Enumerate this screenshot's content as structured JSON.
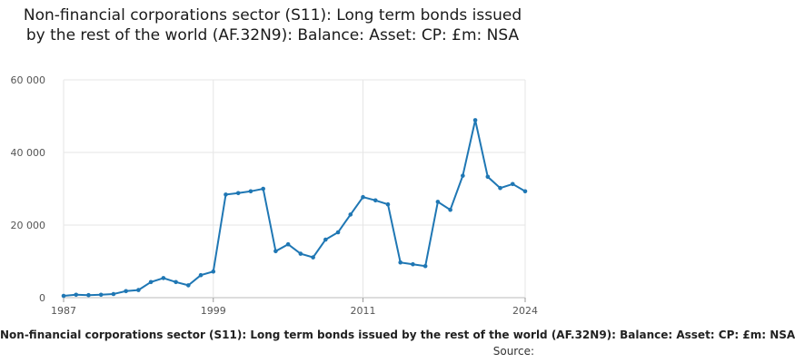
{
  "chart_data": {
    "type": "line",
    "title": "Non-financial corporations sector (S11): Long term bonds issued by the rest of the world (AF.32N9): Balance: Asset: CP: £m: NSA",
    "xlabel": "Non-financial corporations sector (S11): Long term bonds issued by the rest of the world (AF.32N9): Balance: Asset: CP: £m: NSA",
    "ylabel": "",
    "source_label": "Source:",
    "xlim": [
      1987,
      2024
    ],
    "ylim": [
      0,
      60000
    ],
    "x_ticks": [
      1987,
      1999,
      2011,
      2024
    ],
    "x_tick_labels": [
      "1987",
      "1999",
      "2011",
      "2024"
    ],
    "y_ticks": [
      0,
      20000,
      40000,
      60000
    ],
    "y_tick_labels": [
      "0",
      "20 000",
      "40 000",
      "60 000"
    ],
    "grid": true,
    "color": "#1f77b4",
    "series": [
      {
        "x": [
          1987,
          1988,
          1989,
          1990,
          1991,
          1992,
          1993,
          1994,
          1995,
          1996,
          1997,
          1998,
          1999,
          2000,
          2001,
          2002,
          2003,
          2004,
          2005,
          2006,
          2007,
          2008,
          2009,
          2010,
          2011,
          2012,
          2013,
          2014,
          2015,
          2016,
          2017,
          2018,
          2019,
          2020,
          2021,
          2022,
          2023,
          2024
        ],
        "values": [
          500,
          800,
          700,
          800,
          1000,
          1800,
          2100,
          4300,
          5400,
          4300,
          3400,
          6200,
          7200,
          28400,
          28800,
          29300,
          30000,
          12800,
          14700,
          12100,
          11100,
          16000,
          18000,
          22900,
          27700,
          26800,
          25700,
          9700,
          9200,
          8700,
          26400,
          24200,
          33600,
          48900,
          33300,
          30200,
          31300,
          29300
        ]
      }
    ]
  }
}
